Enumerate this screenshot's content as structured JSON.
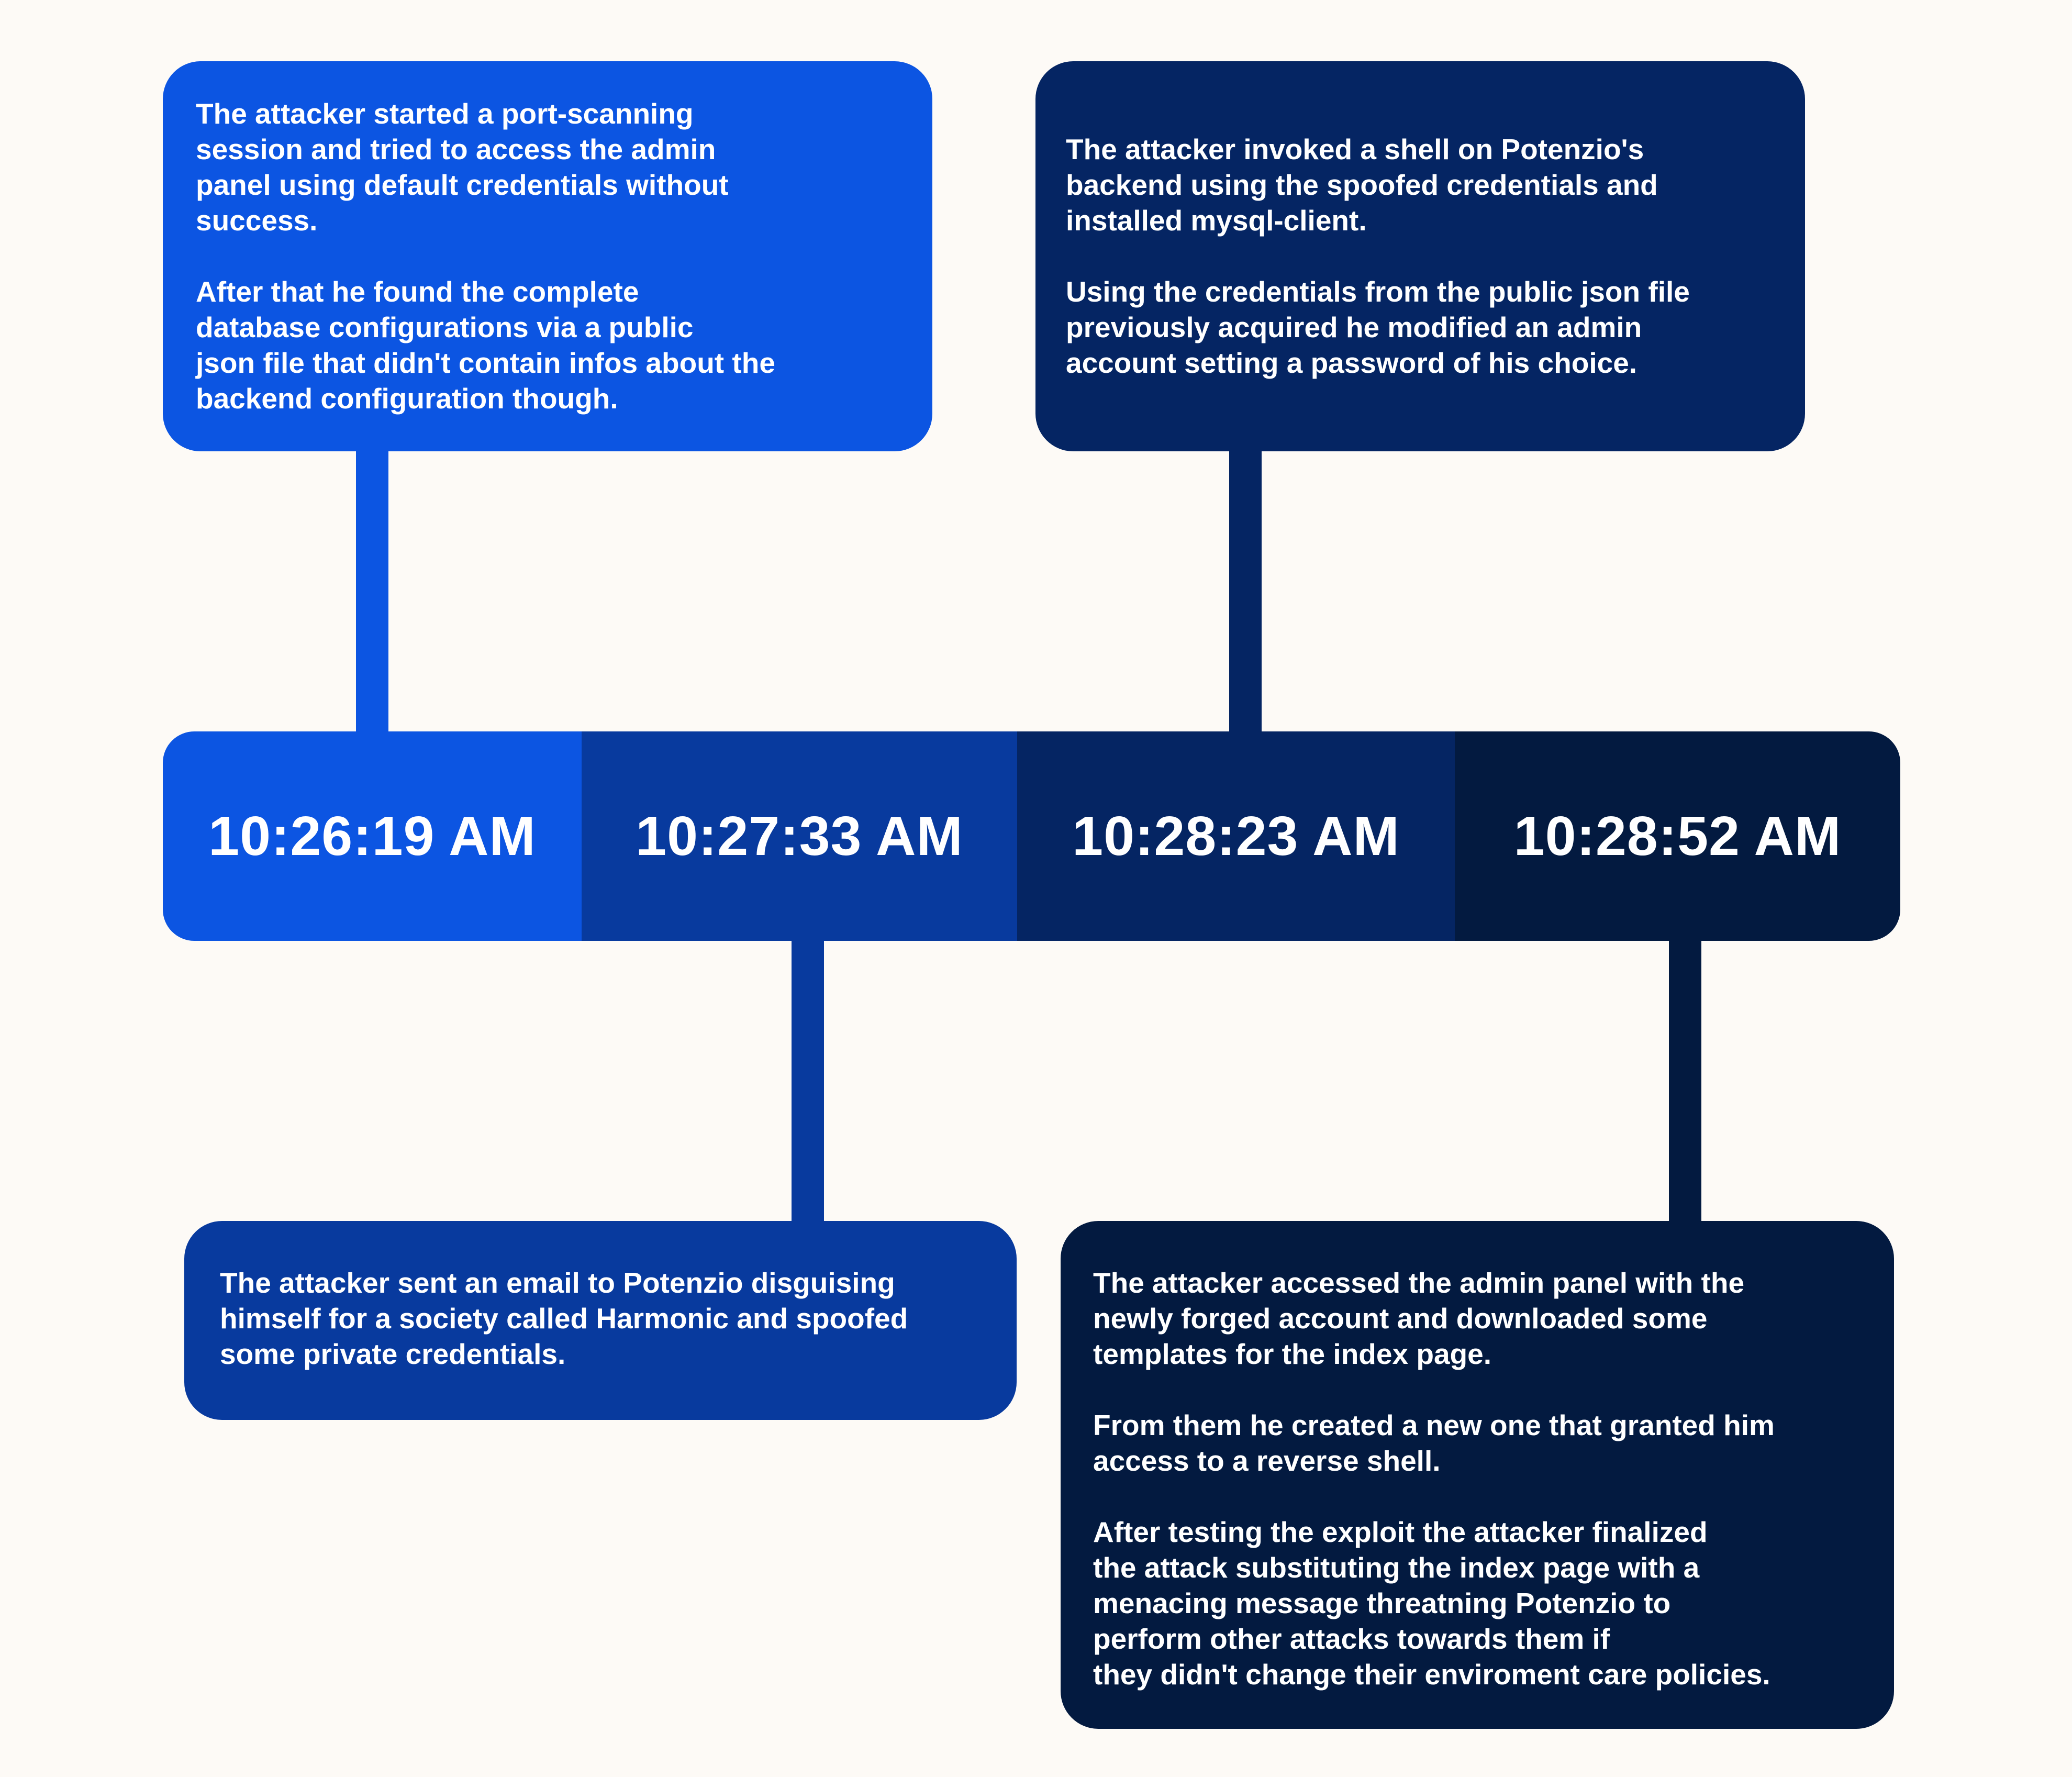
{
  "timeline": {
    "times": [
      "10:26:19 AM",
      "10:27:33 AM",
      "10:28:23 AM",
      "10:28:52 AM"
    ]
  },
  "events": [
    {
      "paragraphs": [
        "The attacker started a port-scanning\nsession and tried to access the admin\npanel using default credentials without\nsuccess.",
        "After that he found the complete\ndatabase configurations via a public\njson file that didn't contain infos about the\nbackend configuration though."
      ]
    },
    {
      "paragraphs": [
        "The attacker sent an email to Potenzio disguising\nhimself for a society called Harmonic and spoofed\nsome private credentials."
      ]
    },
    {
      "paragraphs": [
        "The attacker  invoked a shell on Potenzio's\nbackend using the spoofed credentials and\ninstalled mysql-client.",
        "Using the credentials from the public json file\npreviously acquired he modified an admin\naccount setting a password of his choice."
      ]
    },
    {
      "paragraphs": [
        "The attacker accessed the  admin panel with the\nnewly forged account and downloaded some\ntemplates for the index page.",
        "From them he created a new one that granted him\naccess to a reverse shell.",
        "After testing the exploit the attacker finalized\nthe attack substituting the index page with a\nmenacing message threatning Potenzio to\nperform other attacks towards them if\nthey didn't change their enviroment care policies."
      ]
    }
  ],
  "colors": {
    "background": "#fdfaf6",
    "step1": "#0c55e2",
    "step2": "#083a9e",
    "step3": "#052563",
    "step4": "#031a40",
    "text": "#ffffff"
  }
}
